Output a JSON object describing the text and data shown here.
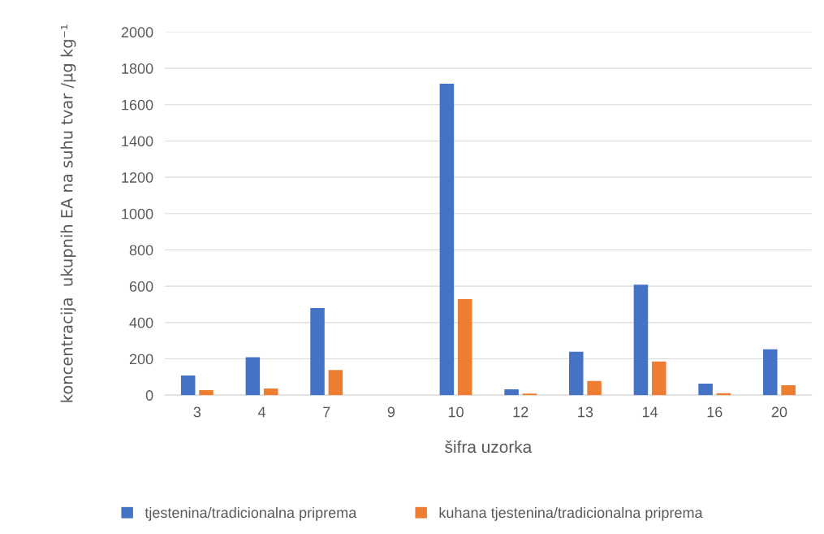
{
  "chart_data": {
    "type": "bar",
    "xlabel": "šifra uzorka",
    "ylabel": "koncentracija  ukupnih EA na suhu tvar /µg kg⁻¹",
    "categories": [
      "3",
      "4",
      "7",
      "9",
      "10",
      "12",
      "13",
      "14",
      "16",
      "20"
    ],
    "series": [
      {
        "name": "tjestenina/tradicionalna priprema",
        "color": "#4472c4",
        "values": [
          108,
          209,
          480,
          null,
          1715,
          32,
          239,
          609,
          64,
          253
        ]
      },
      {
        "name": "kuhana tjestenina/tradicionalna priprema",
        "color": "#ed7d31",
        "values": [
          28,
          37,
          138,
          null,
          529,
          9,
          78,
          186,
          11,
          55
        ]
      }
    ],
    "ylim": [
      0,
      2000
    ],
    "yticks": [
      0,
      200,
      400,
      600,
      800,
      1000,
      1200,
      1400,
      1600,
      1800,
      2000
    ],
    "grid": "y",
    "legend": "bottom"
  }
}
